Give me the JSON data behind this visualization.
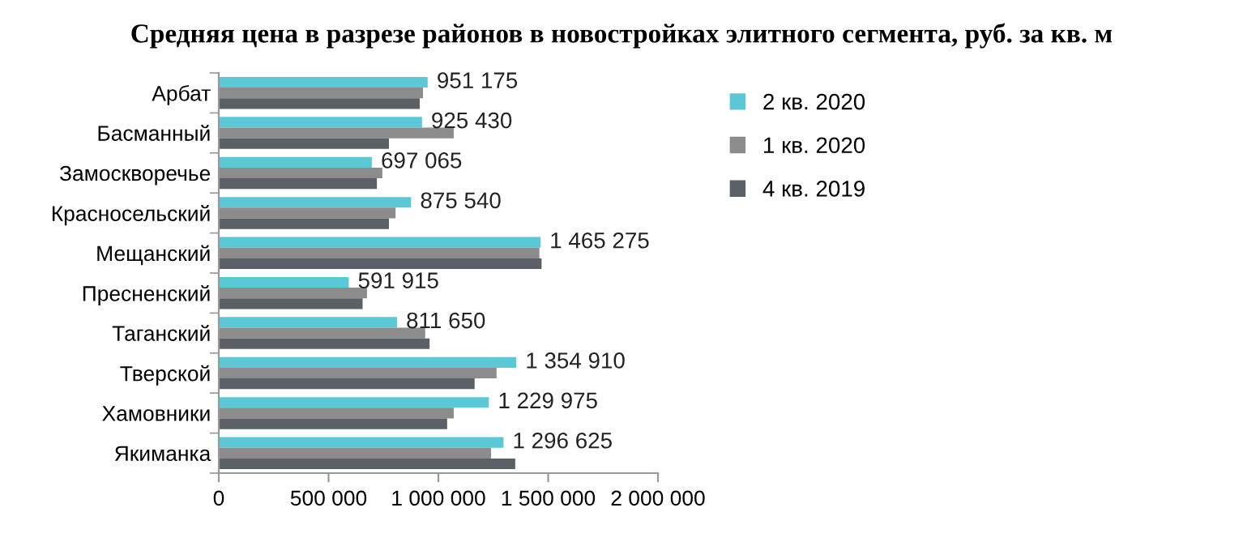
{
  "chart_data": {
    "type": "bar",
    "orientation": "horizontal",
    "title": "Средняя цена в разрезе районов в новостройках элитного сегмента, руб. за кв. м",
    "categories": [
      "Арбат",
      "Басманный",
      "Замоскворечье",
      "Красносельский",
      "Мещанский",
      "Пресненский",
      "Таганский",
      "Тверской",
      "Хамовники",
      "Якиманка"
    ],
    "series": [
      {
        "name": "2 кв. 2020",
        "color": "#5bc8d6",
        "values": [
          951175,
          925430,
          697065,
          875540,
          1465275,
          591915,
          811650,
          1354910,
          1229975,
          1296625
        ],
        "value_labels": [
          "951 175",
          "925 430",
          "697 065",
          "875 540",
          "1 465 275",
          "591 915",
          "811 650",
          "1 354 910",
          "1 229 975",
          "1 296 625"
        ]
      },
      {
        "name": "1 кв. 2020",
        "color": "#8c8c8c",
        "values": [
          930000,
          1070000,
          745000,
          805000,
          1460000,
          675000,
          940000,
          1265000,
          1070000,
          1240000
        ]
      },
      {
        "name": "4 кв. 2019",
        "color": "#5a6065",
        "values": [
          915000,
          775000,
          720000,
          775000,
          1470000,
          655000,
          960000,
          1165000,
          1040000,
          1350000
        ]
      }
    ],
    "xlim": [
      0,
      2000000
    ],
    "xticks": [
      {
        "value": 0,
        "label": "0"
      },
      {
        "value": 500000,
        "label": "500 000"
      },
      {
        "value": 1000000,
        "label": "1 000 000"
      },
      {
        "value": 1500000,
        "label": "1 500 000"
      },
      {
        "value": 2000000,
        "label": "2 000 000"
      }
    ],
    "legend": "right",
    "grid": false
  }
}
